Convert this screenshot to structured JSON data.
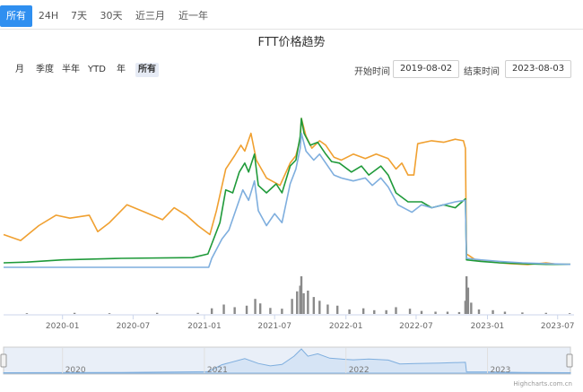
{
  "tabs": [
    {
      "label": "所有",
      "active": true
    },
    {
      "label": "24H",
      "active": false
    },
    {
      "label": "7天",
      "active": false
    },
    {
      "label": "30天",
      "active": false
    },
    {
      "label": "近三月",
      "active": false
    },
    {
      "label": "近一年",
      "active": false
    }
  ],
  "range_selector": [
    {
      "label": "月",
      "active": false
    },
    {
      "label": "季度",
      "active": false
    },
    {
      "label": "半年",
      "active": false
    },
    {
      "label": "YTD",
      "active": false
    },
    {
      "label": "年",
      "active": false
    },
    {
      "label": "所有",
      "active": true
    }
  ],
  "date_range": {
    "start_label": "开始时间",
    "start_value": "2019-08-02",
    "end_label": "结束时间",
    "end_value": "2023-08-03"
  },
  "credits": "Highcharts.com.cn",
  "colors": {
    "accent": "#2f8ff0",
    "orange": "#f0a030",
    "green": "#1f9a3a",
    "blue": "#7eaede",
    "volume": "#8a8a8a",
    "navigator_fill": "#d6e4f5"
  },
  "chart_data": {
    "type": "line",
    "title": "FTT价格趋势",
    "xlabel": "",
    "ylabel": "",
    "x_ticks": [
      "2020-01",
      "2020-07",
      "2021-01",
      "2021-07",
      "2022-01",
      "2022-07",
      "2023-01",
      "2023-07"
    ],
    "navigator_ticks": [
      "2020",
      "2021",
      "2022",
      "2023"
    ],
    "x_range": [
      "2019-08-02",
      "2023-08-03"
    ],
    "series": [
      {
        "color": "#f0a030",
        "points": [
          [
            "2019-08-02",
            0.22
          ],
          [
            "2019-09-15",
            0.18
          ],
          [
            "2019-11-01",
            0.28
          ],
          [
            "2019-12-15",
            0.35
          ],
          [
            "2020-01-20",
            0.33
          ],
          [
            "2020-03-10",
            0.35
          ],
          [
            "2020-04-01",
            0.24
          ],
          [
            "2020-05-01",
            0.3
          ],
          [
            "2020-06-15",
            0.42
          ],
          [
            "2020-08-01",
            0.37
          ],
          [
            "2020-09-15",
            0.32
          ],
          [
            "2020-10-15",
            0.4
          ],
          [
            "2020-11-15",
            0.35
          ],
          [
            "2020-12-15",
            0.28
          ],
          [
            "2021-01-15",
            0.22
          ],
          [
            "2021-02-01",
            0.38
          ],
          [
            "2021-02-25",
            0.66
          ],
          [
            "2021-03-20",
            0.75
          ],
          [
            "2021-04-05",
            0.82
          ],
          [
            "2021-04-15",
            0.78
          ],
          [
            "2021-05-01",
            0.9
          ],
          [
            "2021-05-15",
            0.72
          ],
          [
            "2021-06-10",
            0.6
          ],
          [
            "2021-07-15",
            0.55
          ],
          [
            "2021-08-10",
            0.7
          ],
          [
            "2021-08-25",
            0.75
          ],
          [
            "2021-09-05",
            0.86
          ],
          [
            "2021-09-08",
            1.0
          ],
          [
            "2021-09-20",
            0.88
          ],
          [
            "2021-10-05",
            0.8
          ],
          [
            "2021-10-25",
            0.85
          ],
          [
            "2021-11-10",
            0.82
          ],
          [
            "2021-12-01",
            0.74
          ],
          [
            "2021-12-20",
            0.72
          ],
          [
            "2022-01-20",
            0.76
          ],
          [
            "2022-02-20",
            0.73
          ],
          [
            "2022-03-20",
            0.76
          ],
          [
            "2022-04-20",
            0.73
          ],
          [
            "2022-05-10",
            0.66
          ],
          [
            "2022-05-25",
            0.7
          ],
          [
            "2022-06-10",
            0.62
          ],
          [
            "2022-06-25",
            0.62
          ],
          [
            "2022-07-05",
            0.83
          ],
          [
            "2022-08-10",
            0.85
          ],
          [
            "2022-09-10",
            0.84
          ],
          [
            "2022-10-10",
            0.86
          ],
          [
            "2022-10-31",
            0.85
          ],
          [
            "2022-11-05",
            0.8
          ],
          [
            "2022-11-08",
            0.09
          ],
          [
            "2022-12-01",
            0.05
          ],
          [
            "2023-01-01",
            0.04
          ],
          [
            "2023-02-01",
            0.03
          ],
          [
            "2023-03-01",
            0.025
          ],
          [
            "2023-04-15",
            0.018
          ],
          [
            "2023-06-01",
            0.03
          ],
          [
            "2023-07-01",
            0.02
          ],
          [
            "2023-08-03",
            0.02
          ]
        ]
      },
      {
        "color": "#1f9a3a",
        "points": [
          [
            "2019-08-02",
            0.03
          ],
          [
            "2019-10-01",
            0.035
          ],
          [
            "2020-01-01",
            0.05
          ],
          [
            "2020-06-01",
            0.06
          ],
          [
            "2020-12-01",
            0.065
          ],
          [
            "2021-01-10",
            0.09
          ],
          [
            "2021-02-10",
            0.3
          ],
          [
            "2021-02-25",
            0.52
          ],
          [
            "2021-03-15",
            0.5
          ],
          [
            "2021-04-01",
            0.64
          ],
          [
            "2021-04-15",
            0.7
          ],
          [
            "2021-04-25",
            0.64
          ],
          [
            "2021-05-10",
            0.76
          ],
          [
            "2021-05-20",
            0.55
          ],
          [
            "2021-06-10",
            0.5
          ],
          [
            "2021-07-05",
            0.56
          ],
          [
            "2021-07-20",
            0.5
          ],
          [
            "2021-08-10",
            0.68
          ],
          [
            "2021-08-25",
            0.72
          ],
          [
            "2021-09-05",
            0.88
          ],
          [
            "2021-09-08",
            1.0
          ],
          [
            "2021-09-15",
            0.9
          ],
          [
            "2021-10-01",
            0.82
          ],
          [
            "2021-10-20",
            0.84
          ],
          [
            "2021-11-10",
            0.76
          ],
          [
            "2021-11-25",
            0.71
          ],
          [
            "2021-12-15",
            0.7
          ],
          [
            "2022-01-15",
            0.64
          ],
          [
            "2022-02-10",
            0.68
          ],
          [
            "2022-03-01",
            0.62
          ],
          [
            "2022-04-01",
            0.68
          ],
          [
            "2022-04-20",
            0.62
          ],
          [
            "2022-05-10",
            0.5
          ],
          [
            "2022-06-10",
            0.44
          ],
          [
            "2022-07-15",
            0.44
          ],
          [
            "2022-08-10",
            0.4
          ],
          [
            "2022-09-10",
            0.42
          ],
          [
            "2022-10-10",
            0.4
          ],
          [
            "2022-11-05",
            0.46
          ],
          [
            "2022-11-08",
            0.05
          ],
          [
            "2022-12-15",
            0.04
          ],
          [
            "2023-02-01",
            0.03
          ],
          [
            "2023-04-01",
            0.025
          ],
          [
            "2023-06-01",
            0.02
          ],
          [
            "2023-08-03",
            0.02
          ]
        ]
      },
      {
        "color": "#7eaede",
        "points": [
          [
            "2019-08-02",
            0.0
          ],
          [
            "2019-10-01",
            0.0
          ],
          [
            "2020-06-01",
            0.0
          ],
          [
            "2020-12-01",
            0.0
          ],
          [
            "2021-01-12",
            0.0
          ],
          [
            "2021-01-20",
            0.06
          ],
          [
            "2021-02-15",
            0.19
          ],
          [
            "2021-03-05",
            0.25
          ],
          [
            "2021-03-25",
            0.4
          ],
          [
            "2021-04-10",
            0.52
          ],
          [
            "2021-04-25",
            0.45
          ],
          [
            "2021-05-10",
            0.58
          ],
          [
            "2021-05-20",
            0.38
          ],
          [
            "2021-06-10",
            0.28
          ],
          [
            "2021-07-01",
            0.36
          ],
          [
            "2021-07-20",
            0.3
          ],
          [
            "2021-08-10",
            0.56
          ],
          [
            "2021-08-25",
            0.66
          ],
          [
            "2021-09-05",
            0.8
          ],
          [
            "2021-09-08",
            0.9
          ],
          [
            "2021-09-20",
            0.78
          ],
          [
            "2021-10-10",
            0.72
          ],
          [
            "2021-10-25",
            0.76
          ],
          [
            "2021-11-10",
            0.7
          ],
          [
            "2021-12-01",
            0.62
          ],
          [
            "2021-12-20",
            0.6
          ],
          [
            "2022-01-20",
            0.58
          ],
          [
            "2022-02-20",
            0.6
          ],
          [
            "2022-03-10",
            0.55
          ],
          [
            "2022-04-01",
            0.6
          ],
          [
            "2022-04-20",
            0.54
          ],
          [
            "2022-05-15",
            0.42
          ],
          [
            "2022-06-20",
            0.37
          ],
          [
            "2022-07-15",
            0.42
          ],
          [
            "2022-08-10",
            0.4
          ],
          [
            "2022-09-10",
            0.42
          ],
          [
            "2022-10-10",
            0.44
          ],
          [
            "2022-11-05",
            0.45
          ],
          [
            "2022-11-08",
            0.06
          ],
          [
            "2022-12-15",
            0.05
          ],
          [
            "2023-02-01",
            0.04
          ],
          [
            "2023-04-01",
            0.03
          ],
          [
            "2023-06-01",
            0.025
          ],
          [
            "2023-08-03",
            0.02
          ]
        ]
      }
    ],
    "volume": [
      [
        "2019-10-01",
        0.02
      ],
      [
        "2020-02-01",
        0.03
      ],
      [
        "2020-05-01",
        0.02
      ],
      [
        "2020-09-01",
        0.03
      ],
      [
        "2020-12-15",
        0.03
      ],
      [
        "2021-01-20",
        0.15
      ],
      [
        "2021-02-20",
        0.25
      ],
      [
        "2021-03-20",
        0.18
      ],
      [
        "2021-04-20",
        0.22
      ],
      [
        "2021-05-12",
        0.4
      ],
      [
        "2021-05-25",
        0.28
      ],
      [
        "2021-06-20",
        0.16
      ],
      [
        "2021-07-20",
        0.14
      ],
      [
        "2021-08-15",
        0.4
      ],
      [
        "2021-08-28",
        0.6
      ],
      [
        "2021-09-05",
        0.75
      ],
      [
        "2021-09-08",
        1.0
      ],
      [
        "2021-09-14",
        0.55
      ],
      [
        "2021-09-25",
        0.62
      ],
      [
        "2021-10-10",
        0.45
      ],
      [
        "2021-10-25",
        0.35
      ],
      [
        "2021-11-15",
        0.25
      ],
      [
        "2021-12-10",
        0.22
      ],
      [
        "2022-01-10",
        0.12
      ],
      [
        "2022-02-15",
        0.15
      ],
      [
        "2022-03-15",
        0.1
      ],
      [
        "2022-04-15",
        0.1
      ],
      [
        "2022-05-10",
        0.18
      ],
      [
        "2022-06-15",
        0.14
      ],
      [
        "2022-07-15",
        0.08
      ],
      [
        "2022-08-20",
        0.06
      ],
      [
        "2022-09-20",
        0.06
      ],
      [
        "2022-10-20",
        0.05
      ],
      [
        "2022-11-05",
        0.35
      ],
      [
        "2022-11-08",
        1.0
      ],
      [
        "2022-11-12",
        0.7
      ],
      [
        "2022-11-20",
        0.3
      ],
      [
        "2022-12-10",
        0.12
      ],
      [
        "2023-01-15",
        0.1
      ],
      [
        "2023-02-15",
        0.06
      ],
      [
        "2023-04-01",
        0.04
      ],
      [
        "2023-06-01",
        0.03
      ],
      [
        "2023-08-01",
        0.02
      ]
    ],
    "navigator": [
      [
        "2019-08-02",
        0.02
      ],
      [
        "2020-06-01",
        0.03
      ],
      [
        "2021-01-10",
        0.06
      ],
      [
        "2021-02-15",
        0.35
      ],
      [
        "2021-04-15",
        0.6
      ],
      [
        "2021-05-20",
        0.4
      ],
      [
        "2021-06-20",
        0.3
      ],
      [
        "2021-07-20",
        0.36
      ],
      [
        "2021-08-20",
        0.7
      ],
      [
        "2021-09-08",
        1.0
      ],
      [
        "2021-09-25",
        0.7
      ],
      [
        "2021-10-20",
        0.8
      ],
      [
        "2021-11-20",
        0.62
      ],
      [
        "2021-12-20",
        0.58
      ],
      [
        "2022-01-20",
        0.55
      ],
      [
        "2022-03-01",
        0.58
      ],
      [
        "2022-04-20",
        0.54
      ],
      [
        "2022-05-20",
        0.38
      ],
      [
        "2022-07-01",
        0.4
      ],
      [
        "2022-09-01",
        0.42
      ],
      [
        "2022-11-05",
        0.45
      ],
      [
        "2022-11-08",
        0.05
      ],
      [
        "2023-01-01",
        0.05
      ],
      [
        "2023-04-01",
        0.03
      ],
      [
        "2023-08-03",
        0.02
      ]
    ]
  }
}
